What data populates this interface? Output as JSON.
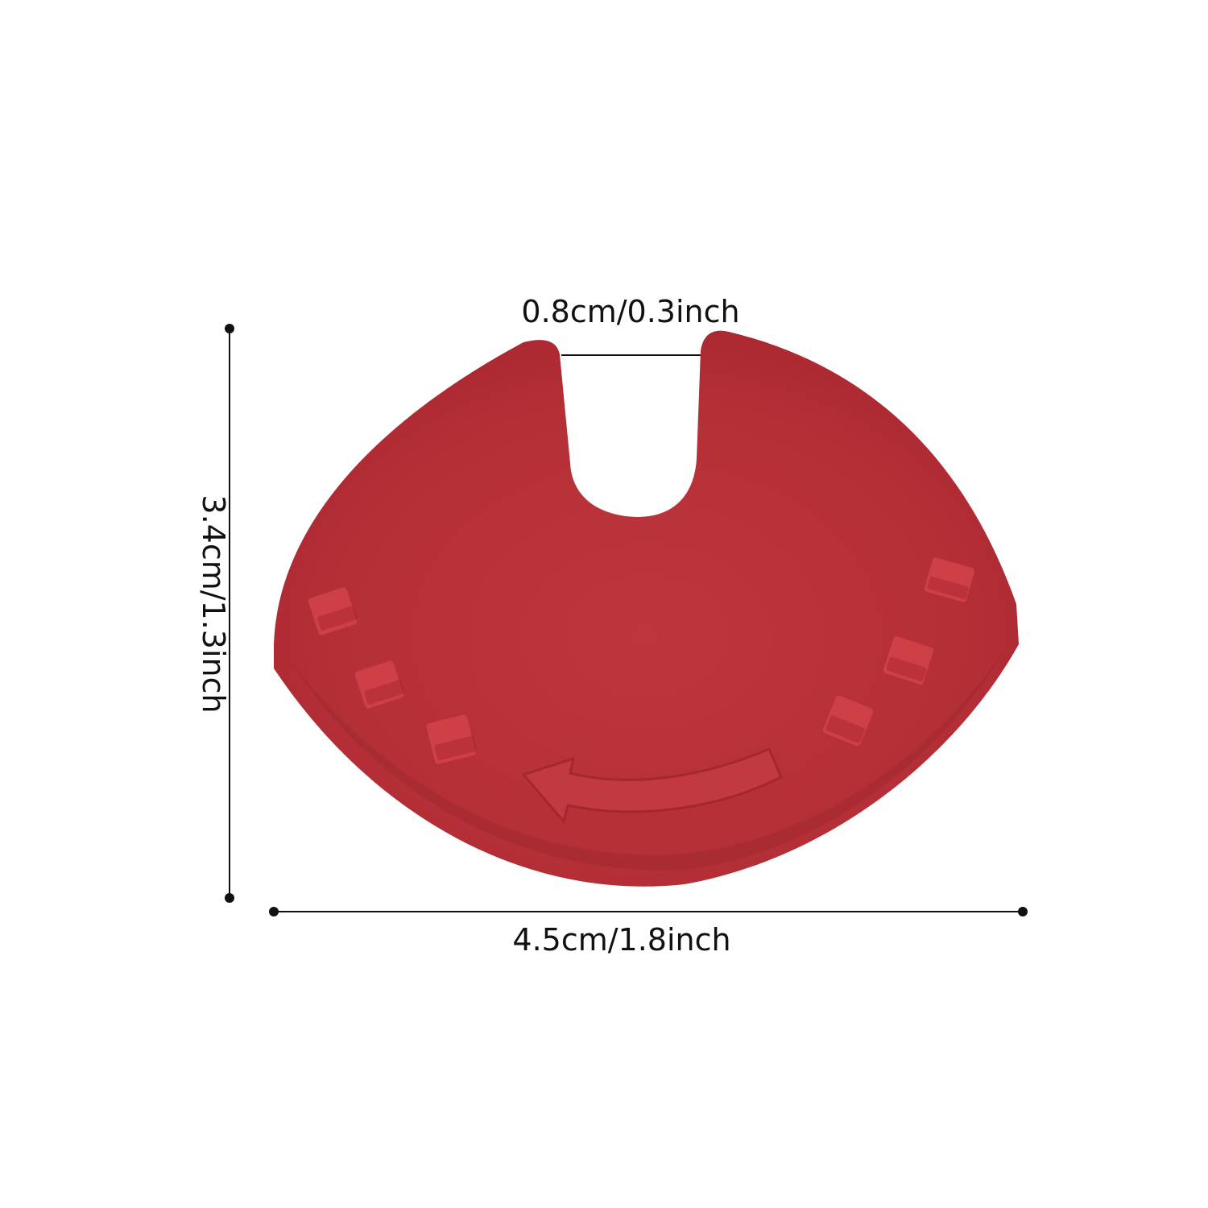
{
  "dimensions": {
    "slot_width": "0.8cm/0.3inch",
    "height": "3.4cm/1.3inch",
    "width": "4.5cm/1.8inch"
  },
  "colors": {
    "part_fill": "#b8313a",
    "part_shadow": "#a8262f",
    "part_highlight": "#c23c44",
    "line": "#111111",
    "background": "#ffffff"
  }
}
